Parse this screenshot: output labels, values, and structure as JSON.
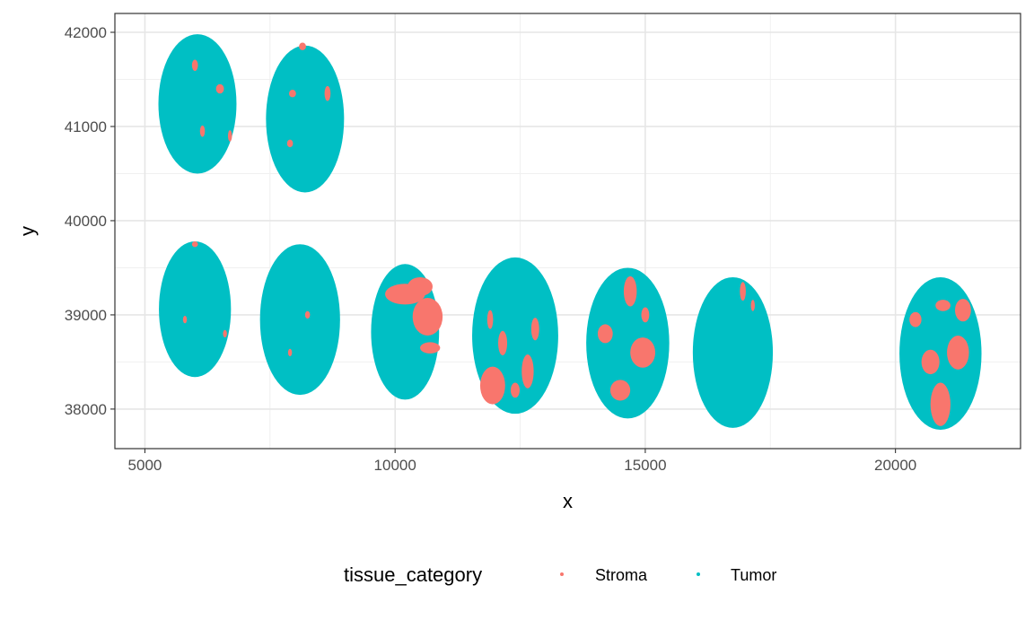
{
  "chart_data": {
    "type": "scatter",
    "title": "",
    "xlabel": "x",
    "ylabel": "y",
    "xlim": [
      4400,
      22500
    ],
    "ylim": [
      37580,
      42200
    ],
    "x_ticks": [
      5000,
      10000,
      15000,
      20000
    ],
    "y_ticks": [
      38000,
      39000,
      40000,
      41000,
      42000
    ],
    "x_tick_labels": [
      "5000",
      "10000",
      "15000",
      "20000"
    ],
    "y_tick_labels": [
      "38000",
      "39000",
      "40000",
      "41000",
      "42000"
    ],
    "grid": true,
    "theme": "bw",
    "legend": {
      "title": "tissue_category",
      "position": "bottom",
      "entries": [
        {
          "label": "Stroma",
          "color": "#F8766D"
        },
        {
          "label": "Tumor",
          "color": "#00BFC4"
        }
      ]
    },
    "series": [
      {
        "name": "Stroma",
        "color": "#F8766D"
      },
      {
        "name": "Tumor",
        "color": "#00BFC4"
      }
    ],
    "regions": [
      {
        "cx": 6050,
        "cy": 41240,
        "rx": 780,
        "ry": 740,
        "stroma_clusters": [
          [
            6000,
            41650,
            60,
            60
          ],
          [
            6500,
            41400,
            80,
            50
          ],
          [
            6700,
            40900,
            40,
            60
          ],
          [
            6150,
            40950,
            50,
            60
          ]
        ]
      },
      {
        "cx": 8200,
        "cy": 41080,
        "rx": 780,
        "ry": 780,
        "stroma_clusters": [
          [
            8650,
            41350,
            60,
            80
          ],
          [
            7950,
            41350,
            70,
            40
          ],
          [
            7900,
            40820,
            60,
            40
          ],
          [
            8150,
            41850,
            70,
            40
          ]
        ]
      },
      {
        "cx": 6000,
        "cy": 39060,
        "rx": 720,
        "ry": 720,
        "stroma_clusters": [
          [
            6000,
            39750,
            60,
            30
          ],
          [
            5800,
            38950,
            40,
            40
          ],
          [
            6600,
            38800,
            40,
            40
          ]
        ]
      },
      {
        "cx": 8100,
        "cy": 38950,
        "rx": 800,
        "ry": 800,
        "stroma_clusters": [
          [
            8250,
            39000,
            50,
            40
          ],
          [
            7900,
            38600,
            40,
            40
          ]
        ]
      },
      {
        "cx": 10200,
        "cy": 38820,
        "rx": 680,
        "ry": 720,
        "stroma_clusters": [
          [
            10200,
            39220,
            400,
            110
          ],
          [
            10650,
            38980,
            300,
            200
          ],
          [
            10500,
            39300,
            250,
            100
          ],
          [
            10700,
            38650,
            200,
            60
          ]
        ]
      },
      {
        "cx": 12400,
        "cy": 38780,
        "rx": 860,
        "ry": 830,
        "stroma_clusters": [
          [
            11950,
            38250,
            250,
            200
          ],
          [
            12150,
            38700,
            90,
            130
          ],
          [
            12650,
            38400,
            120,
            180
          ],
          [
            12800,
            38850,
            80,
            120
          ],
          [
            12400,
            38200,
            90,
            80
          ],
          [
            11900,
            38950,
            60,
            100
          ]
        ]
      },
      {
        "cx": 14650,
        "cy": 38700,
        "rx": 830,
        "ry": 800,
        "stroma_clusters": [
          [
            14950,
            38600,
            250,
            160
          ],
          [
            14500,
            38200,
            200,
            110
          ],
          [
            14200,
            38800,
            150,
            100
          ],
          [
            14700,
            39250,
            130,
            160
          ],
          [
            15000,
            39000,
            80,
            80
          ]
        ]
      },
      {
        "cx": 16750,
        "cy": 38600,
        "rx": 800,
        "ry": 800,
        "stroma_clusters": [
          [
            16950,
            39250,
            60,
            100
          ],
          [
            17150,
            39100,
            40,
            60
          ]
        ]
      },
      {
        "cx": 20900,
        "cy": 38590,
        "rx": 820,
        "ry": 810,
        "stroma_clusters": [
          [
            20900,
            38050,
            200,
            230
          ],
          [
            21250,
            38600,
            220,
            180
          ],
          [
            20700,
            38500,
            180,
            130
          ],
          [
            21350,
            39050,
            160,
            120
          ],
          [
            20950,
            39100,
            150,
            60
          ],
          [
            20400,
            38950,
            120,
            80
          ]
        ]
      }
    ]
  }
}
